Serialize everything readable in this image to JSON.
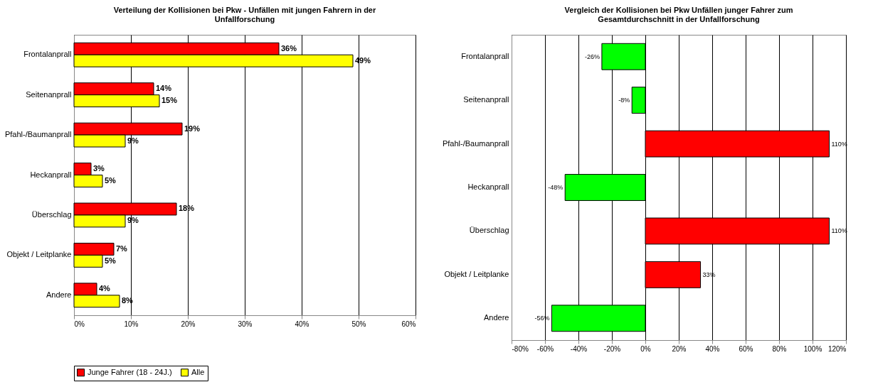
{
  "chart_data": [
    {
      "type": "bar",
      "orientation": "horizontal",
      "title": "Verteilung der Kollisionen bei Pkw - Unfällen mit jungen Fahrern in der Unfallforschung",
      "categories": [
        "Frontalanprall",
        "Seitenanprall",
        "Pfahl-/Baumanprall",
        "Heckanprall",
        "Überschlag",
        "Objekt / Leitplanke",
        "Andere"
      ],
      "series": [
        {
          "name": "Junge Fahrer (18 - 24J.)",
          "color": "#ff0000",
          "values": [
            36,
            14,
            19,
            3,
            18,
            7,
            4
          ],
          "value_labels": [
            "36%",
            "14%",
            "19%",
            "3%",
            "18%",
            "7%",
            "4%"
          ]
        },
        {
          "name": "Alle",
          "color": "#ffff00",
          "values": [
            49,
            15,
            9,
            5,
            9,
            5,
            8
          ],
          "value_labels": [
            "49%",
            "15%",
            "9%",
            "5%",
            "9%",
            "5%",
            "8%"
          ]
        }
      ],
      "xlim": [
        0,
        60
      ],
      "xticks": [
        {
          "value": 0,
          "label": "0%"
        },
        {
          "value": 10,
          "label": "10%"
        },
        {
          "value": 20,
          "label": "20%"
        },
        {
          "value": 30,
          "label": "30%"
        },
        {
          "value": 40,
          "label": "40%"
        },
        {
          "value": 50,
          "label": "50%"
        },
        {
          "value": 60,
          "label": "60%"
        }
      ],
      "grid": "x",
      "legend": "bottom"
    },
    {
      "type": "bar",
      "orientation": "horizontal",
      "title": "Vergleich der Kollisionen bei Pkw Unfällen junger Fahrer zum Gesamtdurchschnitt in der Unfallforschung",
      "categories": [
        "Frontalanprall",
        "Seitenanprall",
        "Pfahl-/Baumanprall",
        "Heckanprall",
        "Überschlag",
        "Objekt / Leitplanke",
        "Andere"
      ],
      "values": [
        -26,
        -8,
        110,
        -48,
        110,
        33,
        -56
      ],
      "colors": [
        "#00ff00",
        "#00ff00",
        "#ff0000",
        "#00ff00",
        "#ff0000",
        "#ff0000",
        "#00ff00"
      ],
      "value_labels": [
        "-26%",
        "-8%",
        "110%",
        "-48%",
        "110%",
        "33%",
        "-56%"
      ],
      "xlim": [
        -80,
        120
      ],
      "xticks": [
        {
          "value": -80,
          "label": "-80%"
        },
        {
          "value": -60,
          "label": "-60%"
        },
        {
          "value": -40,
          "label": "-40%"
        },
        {
          "value": -20,
          "label": "-20%"
        },
        {
          "value": 0,
          "label": "0%"
        },
        {
          "value": 20,
          "label": "20%"
        },
        {
          "value": 40,
          "label": "40%"
        },
        {
          "value": 60,
          "label": "60%"
        },
        {
          "value": 80,
          "label": "80%"
        },
        {
          "value": 100,
          "label": "100%"
        },
        {
          "value": 120,
          "label": "120%"
        }
      ],
      "grid": "x"
    }
  ]
}
